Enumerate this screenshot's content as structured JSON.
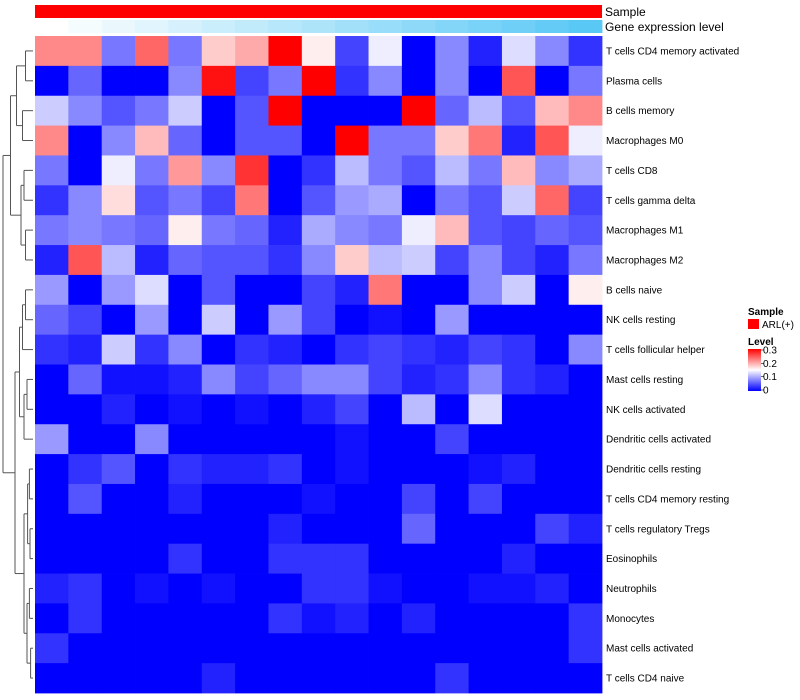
{
  "chart_data": {
    "type": "heatmap",
    "title": "",
    "annotations": [
      {
        "label": "Sample",
        "kind": "categorical",
        "color": "#ff0000"
      },
      {
        "label": "Gene expression level",
        "kind": "gradient",
        "from_color": "#ffffff",
        "to_color": "#5ac8f5"
      }
    ],
    "rows": [
      "T cells CD4 memory activated",
      "Plasma cells",
      "B cells memory",
      "Macrophages M0",
      "T cells CD8",
      "T cells gamma delta",
      "Macrophages M1",
      "Macrophages M2",
      "B cells naive",
      "NK cells resting",
      "T cells follicular helper",
      "Mast cells resting",
      "NK cells activated",
      "Dendritic cells activated",
      "Dendritic cells resting",
      "T cells CD4 memory resting",
      "T cells regulatory  Tregs",
      "Eosinophils",
      "Neutrophils",
      "Monocytes",
      "Mast cells activated",
      "T cells CD4 naive"
    ],
    "n_columns": 17,
    "values": [
      [
        0.22,
        0.22,
        0.07,
        0.24,
        0.07,
        0.18,
        0.2,
        0.3,
        0.16,
        0.04,
        0.14,
        0.0,
        0.08,
        0.02,
        0.13,
        0.08,
        0.03
      ],
      [
        0.0,
        0.06,
        0.0,
        0.0,
        0.08,
        0.29,
        0.04,
        0.07,
        0.3,
        0.03,
        0.08,
        0.0,
        0.08,
        0.0,
        0.25,
        0.0,
        0.07
      ],
      [
        0.12,
        0.08,
        0.05,
        0.07,
        0.12,
        0.0,
        0.05,
        0.3,
        0.0,
        0.0,
        0.0,
        0.3,
        0.06,
        0.11,
        0.05,
        0.19,
        0.22
      ],
      [
        0.22,
        0.0,
        0.08,
        0.19,
        0.06,
        0.0,
        0.05,
        0.05,
        0.0,
        0.3,
        0.07,
        0.07,
        0.18,
        0.23,
        0.02,
        0.25,
        0.14
      ],
      [
        0.07,
        0.0,
        0.14,
        0.07,
        0.21,
        0.08,
        0.27,
        0.0,
        0.03,
        0.11,
        0.07,
        0.05,
        0.11,
        0.07,
        0.19,
        0.08,
        0.1
      ],
      [
        0.03,
        0.08,
        0.17,
        0.05,
        0.07,
        0.04,
        0.23,
        0.0,
        0.05,
        0.09,
        0.1,
        0.0,
        0.07,
        0.05,
        0.12,
        0.24,
        0.04
      ],
      [
        0.07,
        0.08,
        0.07,
        0.06,
        0.16,
        0.07,
        0.06,
        0.02,
        0.1,
        0.08,
        0.07,
        0.14,
        0.19,
        0.05,
        0.04,
        0.06,
        0.05
      ],
      [
        0.02,
        0.25,
        0.11,
        0.02,
        0.06,
        0.05,
        0.05,
        0.03,
        0.08,
        0.18,
        0.11,
        0.12,
        0.04,
        0.08,
        0.04,
        0.02,
        0.07
      ],
      [
        0.09,
        0.0,
        0.09,
        0.13,
        0.0,
        0.05,
        0.0,
        0.0,
        0.04,
        0.02,
        0.23,
        0.0,
        0.0,
        0.08,
        0.12,
        0.0,
        0.16
      ],
      [
        0.06,
        0.04,
        0.0,
        0.09,
        0.0,
        0.12,
        0.0,
        0.09,
        0.04,
        0.0,
        0.01,
        0.0,
        0.09,
        0.0,
        0.0,
        0.0,
        0.0
      ],
      [
        0.03,
        0.02,
        0.12,
        0.03,
        0.08,
        0.0,
        0.03,
        0.02,
        0.0,
        0.03,
        0.04,
        0.03,
        0.02,
        0.04,
        0.03,
        0.0,
        0.08
      ],
      [
        0.0,
        0.06,
        0.01,
        0.01,
        0.02,
        0.08,
        0.04,
        0.06,
        0.08,
        0.08,
        0.04,
        0.02,
        0.03,
        0.08,
        0.03,
        0.02,
        0.0
      ],
      [
        0.0,
        0.0,
        0.02,
        0.0,
        0.01,
        0.0,
        0.01,
        0.0,
        0.02,
        0.04,
        0.0,
        0.11,
        0.0,
        0.13,
        0.0,
        0.0,
        0.0
      ],
      [
        0.09,
        0.0,
        0.0,
        0.08,
        0.0,
        0.0,
        0.0,
        0.0,
        0.0,
        0.01,
        0.0,
        0.0,
        0.04,
        0.0,
        0.0,
        0.0,
        0.0
      ],
      [
        0.0,
        0.03,
        0.05,
        0.0,
        0.03,
        0.02,
        0.02,
        0.03,
        0.0,
        0.01,
        0.0,
        0.0,
        0.0,
        0.01,
        0.02,
        0.0,
        0.0
      ],
      [
        0.0,
        0.05,
        0.0,
        0.0,
        0.02,
        0.0,
        0.0,
        0.0,
        0.01,
        0.0,
        0.0,
        0.04,
        0.0,
        0.04,
        0.0,
        0.0,
        0.0
      ],
      [
        0.0,
        0.0,
        0.0,
        0.0,
        0.0,
        0.0,
        0.0,
        0.02,
        0.0,
        0.0,
        0.0,
        0.06,
        0.0,
        0.0,
        0.0,
        0.04,
        0.02
      ],
      [
        0.0,
        0.0,
        0.0,
        0.0,
        0.03,
        0.0,
        0.0,
        0.03,
        0.03,
        0.03,
        0.0,
        0.0,
        0.0,
        0.0,
        0.02,
        0.0,
        0.0
      ],
      [
        0.02,
        0.03,
        0.0,
        0.01,
        0.0,
        0.01,
        0.0,
        0.0,
        0.03,
        0.03,
        0.01,
        0.0,
        0.0,
        0.01,
        0.01,
        0.02,
        0.0
      ],
      [
        0.0,
        0.03,
        0.0,
        0.0,
        0.0,
        0.0,
        0.0,
        0.03,
        0.01,
        0.02,
        0.0,
        0.02,
        0.0,
        0.0,
        0.0,
        0.0,
        0.03
      ],
      [
        0.03,
        0.0,
        0.0,
        0.0,
        0.0,
        0.0,
        0.0,
        0.0,
        0.0,
        0.0,
        0.0,
        0.0,
        0.0,
        0.0,
        0.0,
        0.0,
        0.03
      ],
      [
        0.0,
        0.0,
        0.0,
        0.0,
        0.0,
        0.02,
        0.0,
        0.0,
        0.0,
        0.0,
        0.0,
        0.0,
        0.03,
        0.0,
        0.0,
        0.0,
        0.0
      ]
    ],
    "color_scale": {
      "min": 0,
      "max": 0.3,
      "low_color": "#0000ff",
      "mid_color": "#ffffff",
      "high_color": "#ff0000"
    },
    "dendrogram": "rows",
    "legend": {
      "position": "right",
      "sample_title": "Sample",
      "sample_entry": "ARL(+)",
      "level_title": "Level",
      "level_ticks": [
        "0.3",
        "0.2",
        "0.1",
        "0"
      ]
    }
  }
}
